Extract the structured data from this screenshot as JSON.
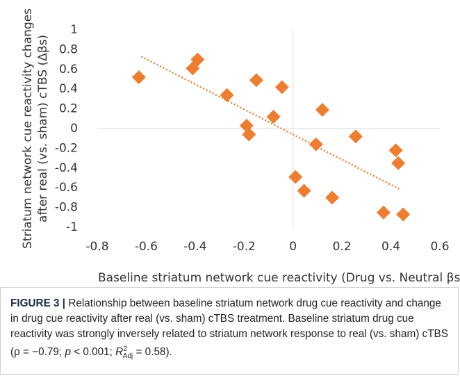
{
  "chart_data": {
    "type": "scatter",
    "xlabel": "Baseline striatum network cue reactivity (Drug vs. Neutral βs)",
    "ylabel": [
      "Striatum network cue reactivity changes",
      "after real (vs. sham) cTBS (Δβs)"
    ],
    "x": [
      -0.63,
      -0.39,
      -0.41,
      -0.27,
      -0.15,
      -0.045,
      -0.19,
      -0.18,
      -0.08,
      0.12,
      0.01,
      0.045,
      0.094,
      0.16,
      0.256,
      0.42,
      0.43,
      0.37,
      0.45
    ],
    "values": [
      0.52,
      0.7,
      0.61,
      0.34,
      0.49,
      0.42,
      0.03,
      -0.06,
      0.12,
      0.19,
      -0.49,
      -0.63,
      -0.16,
      -0.7,
      -0.08,
      -0.22,
      -0.35,
      -0.85,
      -0.87
    ],
    "color": "#ed7d31",
    "trendline": {
      "x": [
        -0.62,
        0.44
      ],
      "values": [
        0.73,
        -0.62
      ]
    },
    "xlim": [
      -0.8,
      0.6
    ],
    "xticks": [
      -0.8,
      -0.6,
      -0.4,
      -0.2,
      0,
      0.2,
      0.4,
      0.6
    ],
    "ylim": [
      -1,
      1
    ],
    "yticks": [
      1,
      0.8,
      0.6,
      0.4,
      0.2,
      0,
      -0.2,
      -0.4,
      -0.6,
      -0.8,
      -1
    ]
  },
  "caption": {
    "label": "FIGURE 3 |",
    "parts": [
      "Relationship between baseline striatum network drug cue reactivity and change in drug cue reactivity after real (vs. sham) cTBS treatment. Baseline striatum drug cue reactivity was strongly inversely related to striatum network response to real (vs. sham) cTBS (ρ = −0.79; ",
      "p",
      " < 0.001; ",
      "R",
      "2",
      "Adj",
      " = 0.58)."
    ]
  }
}
